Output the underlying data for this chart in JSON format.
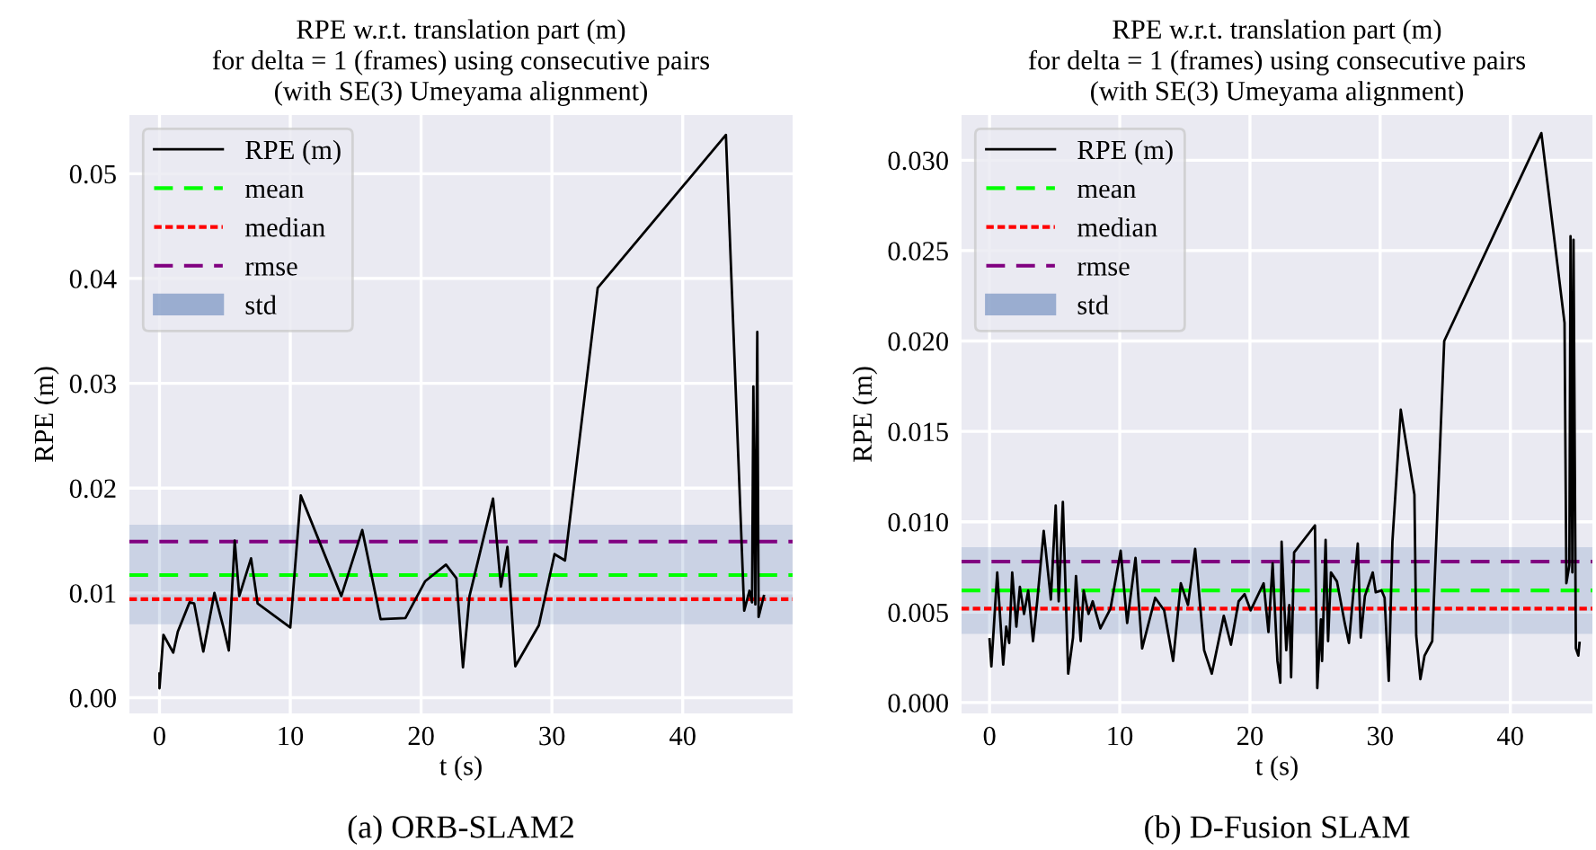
{
  "chart_data": [
    {
      "type": "line",
      "title": "RPE w.r.t. translation part (m)\nfor delta = 1 (frames) using consecutive pairs\n(with SE(3) Umeyama alignment)",
      "xlabel": "t (s)",
      "ylabel": "RPE (m)",
      "annotations": [
        "(a) ORB-SLAM2"
      ],
      "series": [
        {
          "name": "RPE (m)",
          "color": "#000000",
          "x": [
            0,
            0,
            0.3,
            1.05,
            1.4,
            2.3,
            2.65,
            3.35,
            4.2,
            4.85,
            5.3,
            5.75,
            6.1,
            7,
            7.5,
            10,
            10.8,
            13.9,
            15.5,
            16.9,
            18.8,
            20.3,
            21.9,
            22.7,
            23.2,
            23.7,
            25.5,
            26.1,
            26.6,
            27.2,
            29,
            30.2,
            31,
            33.5,
            43.3,
            44.7,
            45.1,
            45.3,
            45.4,
            45.55,
            45.7,
            45.8,
            46.2
          ],
          "values": [
            0.0023,
            0.0009,
            0.006,
            0.0043,
            0.0063,
            0.0091,
            0.009,
            0.0044,
            0.01,
            0.0069,
            0.0045,
            0.015,
            0.0097,
            0.0133,
            0.009,
            0.0067,
            0.0193,
            0.0097,
            0.016,
            0.0075,
            0.0076,
            0.0111,
            0.0127,
            0.0114,
            0.0029,
            0.0097,
            0.019,
            0.0106,
            0.0144,
            0.003,
            0.0069,
            0.0137,
            0.0131,
            0.0391,
            0.0537,
            0.0083,
            0.0102,
            0.0091,
            0.0297,
            0.0089,
            0.0349,
            0.0077,
            0.0097
          ]
        }
      ],
      "ref_lines": [
        {
          "axis": "y",
          "value": 0.0117,
          "label": "mean",
          "color": "#00ff00",
          "line_style": "dashed"
        },
        {
          "axis": "y",
          "value": 0.0094,
          "label": "median",
          "color": "#ff0000",
          "line_style": "dotted"
        },
        {
          "axis": "y",
          "value": 0.0149,
          "label": "rmse",
          "color": "#800080",
          "line_style": "dashed"
        }
      ],
      "bands": [
        {
          "axis": "y",
          "from": 0.007,
          "to": 0.0165,
          "label": "std",
          "color": "#4c72b0"
        }
      ],
      "xlim": [
        -2.3,
        48.4
      ],
      "ylim": [
        -0.0015,
        0.0556
      ],
      "xticks": [
        0,
        10,
        20,
        30,
        40
      ],
      "yticks": [
        {
          "value": 0,
          "label": "0.00"
        },
        {
          "value": 0.01,
          "label": "0.01"
        },
        {
          "value": 0.02,
          "label": "0.02"
        },
        {
          "value": 0.03,
          "label": "0.03"
        },
        {
          "value": 0.04,
          "label": "0.04"
        },
        {
          "value": 0.05,
          "label": "0.05"
        }
      ],
      "grid": true,
      "legend": "top left"
    },
    {
      "type": "line",
      "title": "RPE w.r.t. translation part (m)\nfor delta = 1 (frames) using consecutive pairs\n(with SE(3) Umeyama alignment)",
      "xlabel": "t (s)",
      "ylabel": "RPE (m)",
      "annotations": [
        "(b) D-Fusion SLAM"
      ],
      "series": [
        {
          "name": "RPE (m)",
          "color": "#000000",
          "x": [
            0,
            0.14,
            0.59,
            1.05,
            1.28,
            1.51,
            1.74,
            2.06,
            2.33,
            2.65,
            2.97,
            3.34,
            3.66,
            4.16,
            4.71,
            5.08,
            5.31,
            5.63,
            6.04,
            6.41,
            6.64,
            7.0,
            7.23,
            7.6,
            7.92,
            8.51,
            9.29,
            10.07,
            10.57,
            11.21,
            11.72,
            12.72,
            13.41,
            14.1,
            14.69,
            15.24,
            15.79,
            16.48,
            17.07,
            17.99,
            18.54,
            19.13,
            19.59,
            20.05,
            21.05,
            21.42,
            21.74,
            22.11,
            22.33,
            22.43,
            22.79,
            23.02,
            23.16,
            23.39,
            24.99,
            25.17,
            25.45,
            25.54,
            25.81,
            26.0,
            26.22,
            26.68,
            27.28,
            27.6,
            28.28,
            28.51,
            28.83,
            29.43,
            29.66,
            30.11,
            30.34,
            30.66,
            30.94,
            31.58,
            32.63,
            32.77,
            33.09,
            33.41,
            34.0,
            34.92,
            42.38,
            44.16,
            44.3,
            44.53,
            44.62,
            44.76,
            44.85,
            45.03,
            45.22,
            45.31
          ],
          "values": [
            0.0035,
            0.002,
            0.0072,
            0.0021,
            0.0042,
            0.0033,
            0.0072,
            0.0042,
            0.0064,
            0.0049,
            0.0062,
            0.0034,
            0.0056,
            0.0095,
            0.0057,
            0.0109,
            0.0056,
            0.0111,
            0.0016,
            0.0036,
            0.007,
            0.0034,
            0.0062,
            0.0049,
            0.0056,
            0.0041,
            0.0052,
            0.0084,
            0.0044,
            0.008,
            0.003,
            0.0058,
            0.0051,
            0.0023,
            0.0066,
            0.0054,
            0.0085,
            0.0029,
            0.0016,
            0.0048,
            0.0032,
            0.0056,
            0.006,
            0.0051,
            0.0066,
            0.0039,
            0.0077,
            0.0023,
            0.0011,
            0.0089,
            0.0029,
            0.0054,
            0.0014,
            0.0083,
            0.0098,
            0.0008,
            0.0046,
            0.0023,
            0.009,
            0.0034,
            0.0072,
            0.0067,
            0.0044,
            0.0033,
            0.0088,
            0.0036,
            0.0059,
            0.0072,
            0.0061,
            0.0062,
            0.0058,
            0.0012,
            0.0089,
            0.0162,
            0.0115,
            0.0037,
            0.0013,
            0.0026,
            0.0034,
            0.02,
            0.0315,
            0.021,
            0.0066,
            0.0076,
            0.0258,
            0.0072,
            0.0256,
            0.003,
            0.0026,
            0.0033
          ]
        }
      ],
      "ref_lines": [
        {
          "axis": "y",
          "value": 0.0062,
          "label": "mean",
          "color": "#00ff00",
          "line_style": "dashed"
        },
        {
          "axis": "y",
          "value": 0.0052,
          "label": "median",
          "color": "#ff0000",
          "line_style": "dotted"
        },
        {
          "axis": "y",
          "value": 0.0078,
          "label": "rmse",
          "color": "#800080",
          "line_style": "dashed"
        }
      ],
      "bands": [
        {
          "axis": "y",
          "from": 0.0038,
          "to": 0.0086,
          "label": "std",
          "color": "#4c72b0"
        }
      ],
      "xlim": [
        -2.15,
        46.3
      ],
      "ylim": [
        -0.0006,
        0.0325
      ],
      "xticks": [
        0,
        10,
        20,
        30,
        40
      ],
      "yticks": [
        {
          "value": 0,
          "label": "0.000"
        },
        {
          "value": 0.005,
          "label": "0.005"
        },
        {
          "value": 0.01,
          "label": "0.010"
        },
        {
          "value": 0.015,
          "label": "0.015"
        },
        {
          "value": 0.02,
          "label": "0.020"
        },
        {
          "value": 0.025,
          "label": "0.025"
        },
        {
          "value": 0.03,
          "label": "0.030"
        }
      ],
      "grid": true,
      "legend": "top left"
    }
  ]
}
